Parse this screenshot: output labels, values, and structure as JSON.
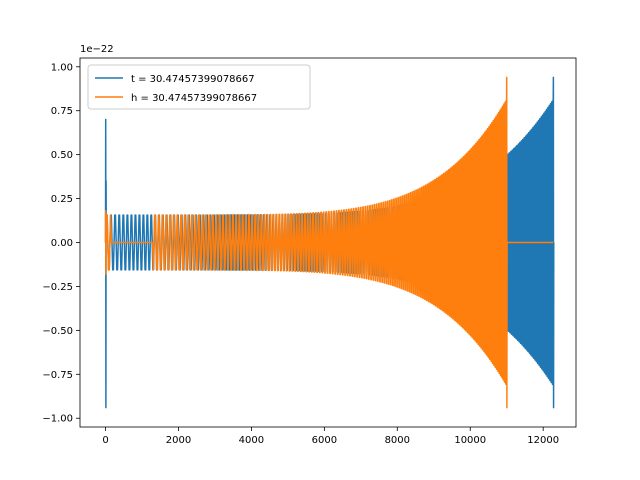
{
  "chart_data": {
    "type": "line",
    "title": "",
    "xlabel": "",
    "ylabel": "",
    "y_offset_label": "1e−22",
    "xlim": [
      -700,
      12900
    ],
    "ylim": [
      -1.05,
      1.05
    ],
    "x_ticks": [
      0,
      2000,
      4000,
      6000,
      8000,
      10000,
      12000
    ],
    "x_tick_labels": [
      "0",
      "2000",
      "4000",
      "6000",
      "8000",
      "10000",
      "12000"
    ],
    "y_ticks": [
      -1.0,
      -0.75,
      -0.5,
      -0.25,
      0.0,
      0.25,
      0.5,
      0.75,
      1.0
    ],
    "y_tick_labels": [
      "−1.00",
      "−0.75",
      "−0.50",
      "−0.25",
      "0.00",
      "0.25",
      "0.50",
      "0.75",
      "1.00"
    ],
    "grid": false,
    "legend_position": "upper-left",
    "series": [
      {
        "name": "t = 30.47457399078667",
        "color": "#1f77b4",
        "x_range": [
          0,
          12280
        ],
        "spike_start": {
          "x": 0,
          "max": 0.7,
          "min": -0.94
        },
        "quiet_until": 1300,
        "base_amplitude": 0.18,
        "peak_amplitude": 0.94,
        "merger_x": 12280,
        "plateau_after_merger": 0.0
      },
      {
        "name": "h = 30.47457399078667",
        "color": "#ff7f0e",
        "x_range": [
          0,
          12280
        ],
        "spike_start": {
          "x": 0,
          "max": 0.18,
          "min": -0.18
        },
        "quiet_range": [
          150,
          1300
        ],
        "base_amplitude": 0.18,
        "peak_amplitude": 0.94,
        "merger_x": 11000,
        "plateau_after_merger": 0.0
      }
    ]
  }
}
